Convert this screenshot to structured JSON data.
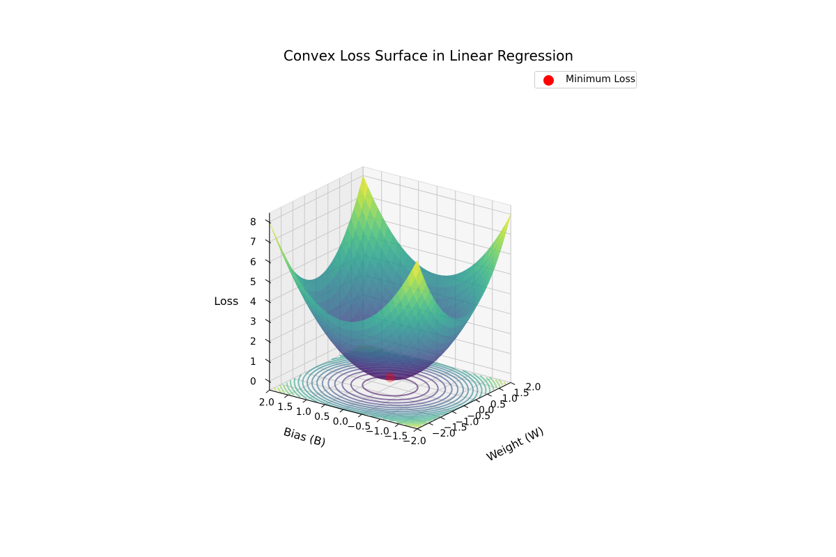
{
  "chart_data": {
    "type": "surface",
    "title": "Convex Loss Surface in Linear Regression",
    "xlabel": "Weight (W)",
    "ylabel": "Bias (B)",
    "zlabel": "Loss",
    "function": "W^2 + B^2",
    "x_range": [
      -2.0,
      2.0
    ],
    "y_range": [
      -2.0,
      2.0
    ],
    "z_range": [
      0,
      8
    ],
    "x_ticks": [
      "−2.0",
      "−1.5",
      "−1.0",
      "−0.5",
      "0.0",
      "0.5",
      "1.0",
      "1.5",
      "2.0"
    ],
    "y_ticks": [
      "−2.0",
      "−1.5",
      "−1.0",
      "−0.5",
      "0.0",
      "0.5",
      "1.0",
      "1.5",
      "2.0"
    ],
    "z_ticks": [
      "0",
      "1",
      "2",
      "3",
      "4",
      "5",
      "6",
      "7",
      "8"
    ],
    "minimum": {
      "W": 0.0,
      "B": 0.0,
      "loss": 0.0
    },
    "colormap": "viridis",
    "grid": true,
    "legend": {
      "entries": [
        "Minimum Loss"
      ],
      "position": "top-right"
    },
    "colors": {
      "minimum_marker": "#ff0000"
    }
  }
}
